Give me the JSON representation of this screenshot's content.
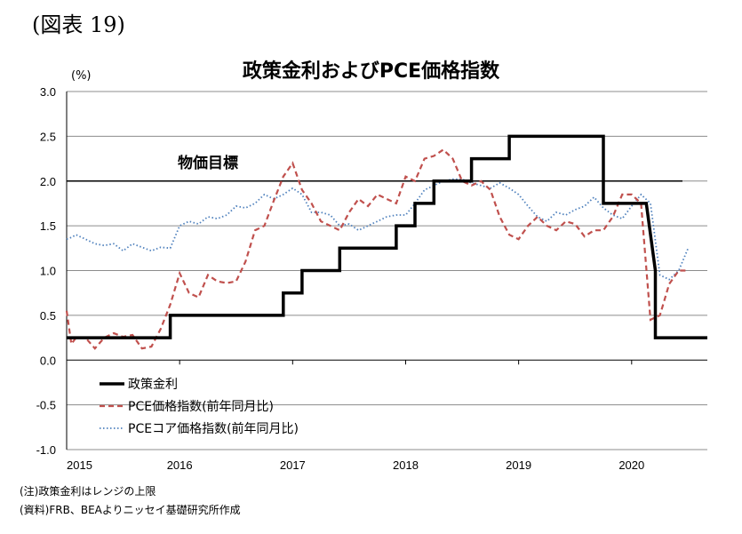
{
  "figure_label": "(図表 19)",
  "notes": [
    "(注)政策金利はレンジの上限",
    "(資料)FRB、BEAよりニッセイ基礎研究所作成"
  ],
  "chart_data": {
    "type": "line",
    "title": "政策金利およびPCE価格指数",
    "ylabel": "(%)",
    "xlabel": "",
    "ylim": [
      -1.0,
      3.0
    ],
    "yticks": [
      "3.0",
      "2.5",
      "2.0",
      "1.5",
      "1.0",
      "0.5",
      "0.0",
      "-0.5",
      "-1.0"
    ],
    "xlim": [
      2015.0,
      2020.67
    ],
    "xticks": [
      "2015",
      "2016",
      "2017",
      "2018",
      "2019",
      "2020"
    ],
    "grid": true,
    "legend_position": "bottom-left",
    "reference_line": {
      "label": "物価目標",
      "value": 2.0
    },
    "series": [
      {
        "name": "政策金利",
        "style": "solid-thick",
        "color": "#000000",
        "x": [
          2015.0,
          2015.917,
          2015.917,
          2016.917,
          2016.917,
          2017.083,
          2017.083,
          2017.417,
          2017.417,
          2017.5,
          2017.5,
          2017.917,
          2017.917,
          2018.083,
          2018.083,
          2018.25,
          2018.25,
          2018.417,
          2018.417,
          2018.583,
          2018.583,
          2018.75,
          2018.75,
          2018.917,
          2018.917,
          2019.5,
          2019.5,
          2019.75,
          2019.75,
          2020.13,
          2020.13,
          2020.21,
          2020.21,
          2020.67
        ],
        "values": [
          0.25,
          0.25,
          0.5,
          0.5,
          0.75,
          0.75,
          1.0,
          1.0,
          1.25,
          1.25,
          1.25,
          1.25,
          1.5,
          1.5,
          1.75,
          1.75,
          2.0,
          2.0,
          2.0,
          2.0,
          2.25,
          2.25,
          2.25,
          2.25,
          2.5,
          2.5,
          2.5,
          2.5,
          1.75,
          1.75,
          1.75,
          1.0,
          0.25,
          0.25
        ]
      },
      {
        "name": "PCE価格指数(前年同月比)",
        "style": "dashed",
        "color": "#c0504d",
        "x": [
          2015.0,
          2015.042,
          2015.083,
          2015.167,
          2015.25,
          2015.333,
          2015.417,
          2015.5,
          2015.583,
          2015.667,
          2015.75,
          2015.833,
          2015.917,
          2016.0,
          2016.083,
          2016.167,
          2016.25,
          2016.333,
          2016.417,
          2016.5,
          2016.583,
          2016.667,
          2016.75,
          2016.833,
          2016.917,
          2017.0,
          2017.083,
          2017.167,
          2017.25,
          2017.333,
          2017.417,
          2017.5,
          2017.583,
          2017.667,
          2017.75,
          2017.833,
          2017.917,
          2018.0,
          2018.083,
          2018.167,
          2018.25,
          2018.333,
          2018.417,
          2018.5,
          2018.583,
          2018.667,
          2018.75,
          2018.833,
          2018.917,
          2019.0,
          2019.083,
          2019.167,
          2019.25,
          2019.333,
          2019.417,
          2019.5,
          2019.583,
          2019.667,
          2019.75,
          2019.833,
          2019.917,
          2020.0,
          2020.083,
          2020.167,
          2020.25,
          2020.333,
          2020.417,
          2020.5
        ],
        "values": [
          0.55,
          0.18,
          0.25,
          0.25,
          0.13,
          0.25,
          0.3,
          0.26,
          0.28,
          0.13,
          0.15,
          0.35,
          0.62,
          0.97,
          0.75,
          0.7,
          0.95,
          0.88,
          0.86,
          0.88,
          1.1,
          1.45,
          1.5,
          1.78,
          2.05,
          2.2,
          1.9,
          1.75,
          1.55,
          1.5,
          1.45,
          1.65,
          1.8,
          1.72,
          1.85,
          1.8,
          1.75,
          2.05,
          2.0,
          2.25,
          2.28,
          2.35,
          2.25,
          2.0,
          1.95,
          2.0,
          1.9,
          1.6,
          1.4,
          1.35,
          1.5,
          1.6,
          1.5,
          1.45,
          1.55,
          1.52,
          1.38,
          1.45,
          1.45,
          1.6,
          1.85,
          1.85,
          1.75,
          0.45,
          0.5,
          0.85,
          1.0,
          1.0
        ]
      },
      {
        "name": "PCEコア価格指数(前年同月比)",
        "style": "dotted",
        "color": "#4f81bd",
        "x": [
          2015.0,
          2015.042,
          2015.083,
          2015.167,
          2015.25,
          2015.333,
          2015.417,
          2015.5,
          2015.583,
          2015.667,
          2015.75,
          2015.833,
          2015.917,
          2016.0,
          2016.083,
          2016.167,
          2016.25,
          2016.333,
          2016.417,
          2016.5,
          2016.583,
          2016.667,
          2016.75,
          2016.833,
          2016.917,
          2017.0,
          2017.083,
          2017.167,
          2017.25,
          2017.333,
          2017.417,
          2017.5,
          2017.583,
          2017.667,
          2017.75,
          2017.833,
          2017.917,
          2018.0,
          2018.083,
          2018.167,
          2018.25,
          2018.333,
          2018.417,
          2018.5,
          2018.583,
          2018.667,
          2018.75,
          2018.833,
          2018.917,
          2019.0,
          2019.083,
          2019.167,
          2019.25,
          2019.333,
          2019.417,
          2019.5,
          2019.583,
          2019.667,
          2019.75,
          2019.833,
          2019.917,
          2020.0,
          2020.083,
          2020.167,
          2020.25,
          2020.333,
          2020.417,
          2020.5
        ],
        "values": [
          1.35,
          1.37,
          1.4,
          1.35,
          1.3,
          1.28,
          1.3,
          1.22,
          1.3,
          1.26,
          1.22,
          1.26,
          1.25,
          1.5,
          1.55,
          1.52,
          1.6,
          1.58,
          1.62,
          1.72,
          1.7,
          1.75,
          1.85,
          1.8,
          1.85,
          1.92,
          1.85,
          1.65,
          1.65,
          1.62,
          1.5,
          1.52,
          1.45,
          1.5,
          1.55,
          1.6,
          1.62,
          1.62,
          1.75,
          1.9,
          1.95,
          2.0,
          2.02,
          2.02,
          1.98,
          1.95,
          1.92,
          1.98,
          1.92,
          1.85,
          1.72,
          1.6,
          1.55,
          1.65,
          1.62,
          1.68,
          1.72,
          1.82,
          1.7,
          1.62,
          1.58,
          1.72,
          1.85,
          1.75,
          0.95,
          0.9,
          1.0,
          1.25
        ]
      }
    ]
  }
}
